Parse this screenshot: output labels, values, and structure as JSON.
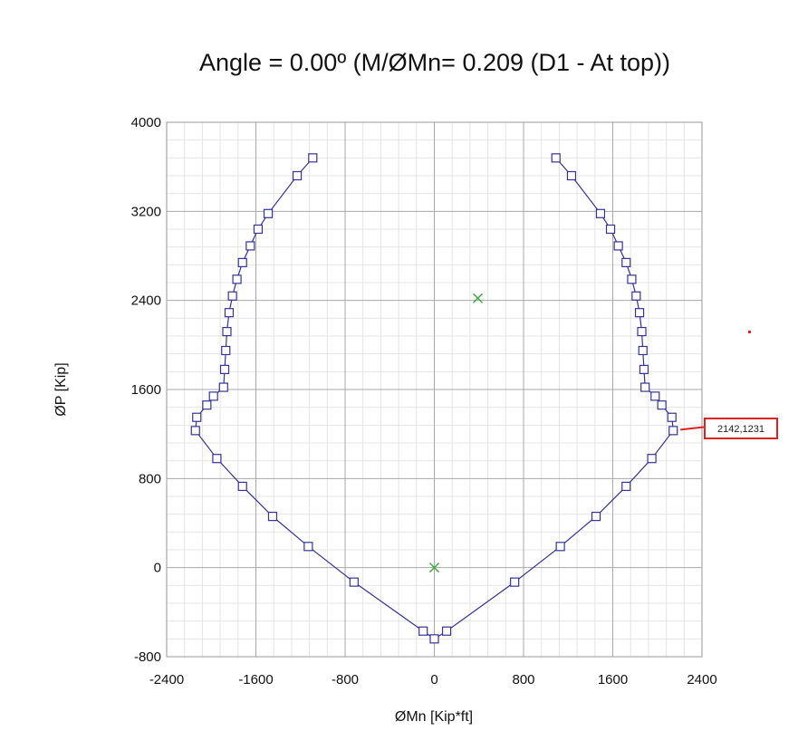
{
  "chart_data": {
    "type": "scatter",
    "title": "Angle = 0.00º (M/ØMn=   0.209 (D1 - At top))",
    "xlabel": "ØMn [Kip*ft]",
    "ylabel": "ØP [Kip]",
    "xlim": [
      -2400,
      2400
    ],
    "ylim": [
      -800,
      4000
    ],
    "x_ticks": [
      "-2400",
      "-1600",
      "-800",
      "0",
      "800",
      "1600",
      "2400"
    ],
    "y_ticks": [
      "-800",
      "0",
      "800",
      "1600",
      "2400",
      "3200",
      "4000"
    ],
    "grid": true,
    "series": [
      {
        "color": "#33339a",
        "marker": "square",
        "points": [
          [
            -1090,
            3680
          ],
          [
            -1230,
            3520
          ],
          [
            -1490,
            3180
          ],
          [
            -1580,
            3040
          ],
          [
            -1650,
            2890
          ],
          [
            -1720,
            2740
          ],
          [
            -1770,
            2590
          ],
          [
            -1810,
            2440
          ],
          [
            -1840,
            2290
          ],
          [
            -1860,
            2120
          ],
          [
            -1870,
            1950
          ],
          [
            -1880,
            1780
          ],
          [
            -1890,
            1620
          ],
          [
            -1980,
            1540
          ],
          [
            -2040,
            1460
          ],
          [
            -2130,
            1350
          ],
          [
            -2142,
            1231
          ],
          [
            -1950,
            980
          ],
          [
            -1720,
            730
          ],
          [
            -1450,
            460
          ],
          [
            -1130,
            190
          ],
          [
            -720,
            -130
          ],
          [
            -100,
            -570
          ],
          [
            0,
            -640
          ],
          [
            110,
            -570
          ],
          [
            720,
            -130
          ],
          [
            1130,
            190
          ],
          [
            1450,
            460
          ],
          [
            1720,
            730
          ],
          [
            1950,
            980
          ],
          [
            2142,
            1231
          ],
          [
            2130,
            1350
          ],
          [
            2040,
            1460
          ],
          [
            1980,
            1540
          ],
          [
            1890,
            1620
          ],
          [
            1880,
            1780
          ],
          [
            1870,
            1950
          ],
          [
            1860,
            2120
          ],
          [
            1840,
            2290
          ],
          [
            1810,
            2440
          ],
          [
            1770,
            2590
          ],
          [
            1720,
            2740
          ],
          [
            1650,
            2890
          ],
          [
            1580,
            3040
          ],
          [
            1490,
            3180
          ],
          [
            1230,
            3520
          ],
          [
            1090,
            3680
          ]
        ]
      },
      {
        "color": "#3aa83a",
        "marker": "x",
        "points": [
          [
            390,
            2420
          ],
          [
            0,
            0
          ]
        ]
      }
    ],
    "annotations": [
      {
        "text": "2142,1231",
        "x": 2142,
        "y": 1231,
        "border_color": "#e02020"
      }
    ]
  }
}
